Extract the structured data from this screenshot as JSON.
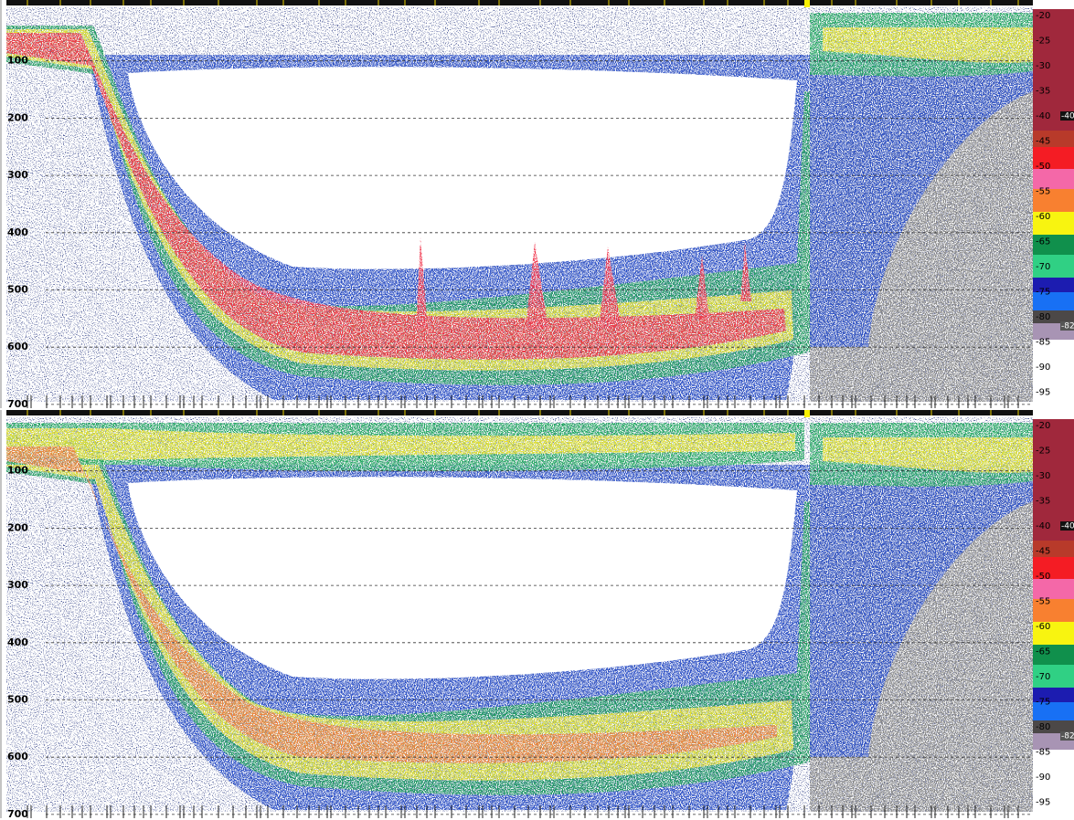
{
  "panels": [
    {
      "depth_labels": [
        100,
        200,
        300,
        400,
        500,
        600,
        700
      ],
      "scale_labels": [
        -20,
        -25,
        -30,
        -35,
        -40,
        -45,
        -50,
        -55,
        -60,
        -65,
        -70,
        -75,
        -80,
        -85,
        -90,
        -95
      ],
      "threshold_labels": [
        -40,
        -82
      ]
    },
    {
      "depth_labels": [
        100,
        200,
        300,
        400,
        500,
        600,
        700
      ],
      "scale_labels": [
        -20,
        -25,
        -30,
        -35,
        -40,
        -45,
        -50,
        -55,
        -60,
        -65,
        -70,
        -75,
        -80,
        -85,
        -90,
        -95
      ],
      "threshold_labels": [
        -40,
        -82
      ]
    }
  ]
}
